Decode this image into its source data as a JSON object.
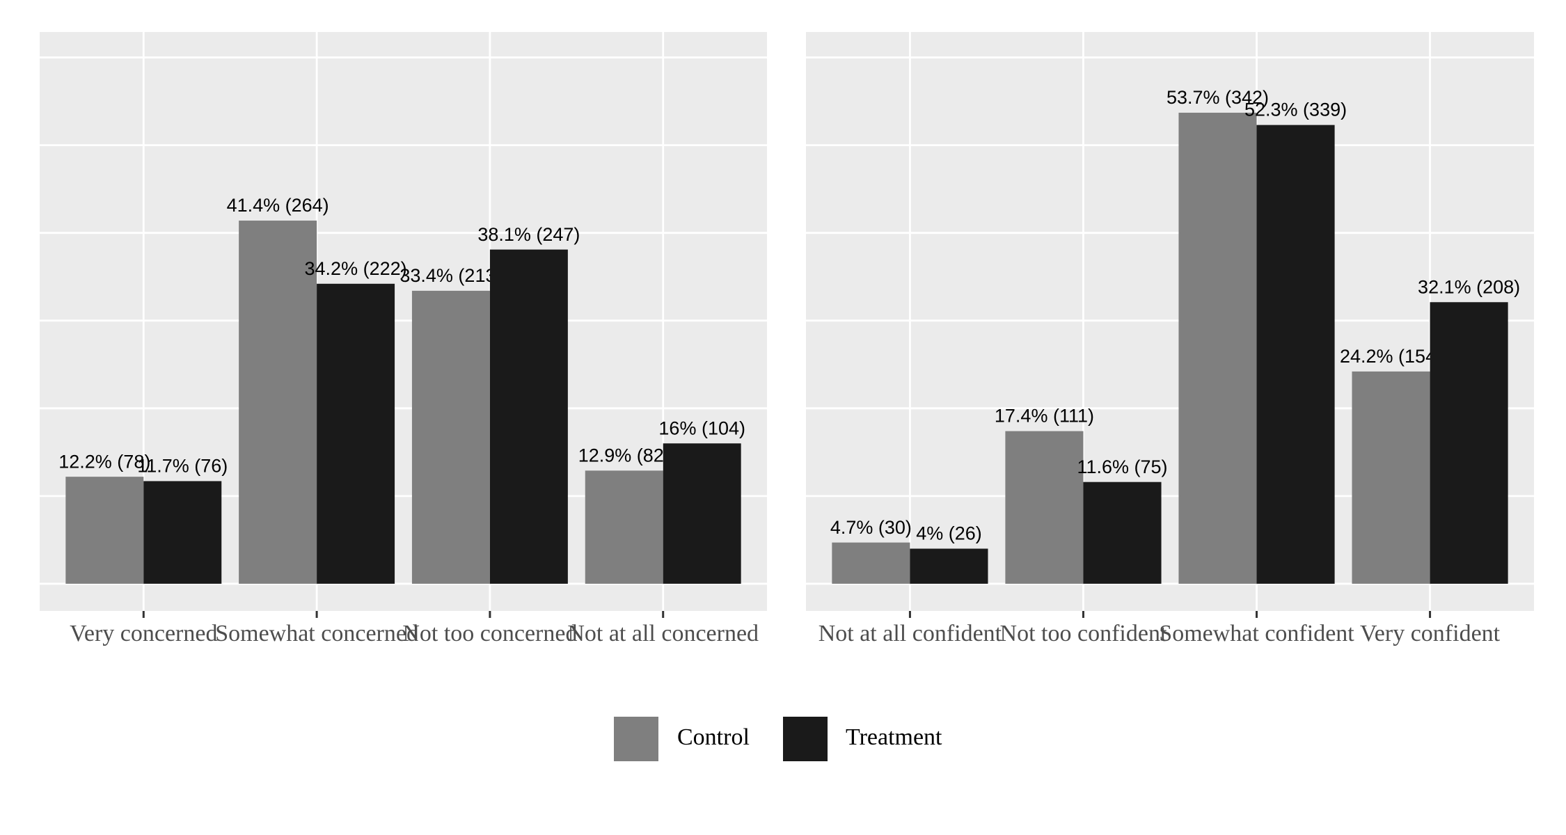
{
  "chart_data": [
    {
      "type": "bar",
      "categories": [
        "Very concerned",
        "Somewhat concerned",
        "Not too concerned",
        "Not at all concerned"
      ],
      "series": [
        {
          "color": "#7f7f7f",
          "values": [
            12.2,
            41.4,
            33.4,
            12.9
          ],
          "value_labels": [
            "12.2% (78)",
            "41.4% (264)",
            "33.4% (213)",
            "12.9% (82)"
          ]
        },
        {
          "color": "#1a1a1a",
          "values": [
            11.7,
            34.2,
            38.1,
            16
          ],
          "value_labels": [
            "11.7% (76)",
            "34.2% (222)",
            "38.1% (247)",
            "16% (104)"
          ]
        }
      ],
      "ylim": [
        -3.1,
        62.9
      ],
      "yticks": [
        0,
        10,
        20,
        30,
        40,
        50,
        60
      ],
      "grid": true
    },
    {
      "type": "bar",
      "categories": [
        "Not at all confident",
        "Not too confident",
        "Somewhat confident",
        "Very confident"
      ],
      "series": [
        {
          "color": "#7f7f7f",
          "values": [
            4.7,
            17.4,
            53.7,
            24.2
          ],
          "value_labels": [
            "4.7% (30)",
            "17.4% (111)",
            "53.7% (342)",
            "24.2% (154)"
          ]
        },
        {
          "color": "#1a1a1a",
          "values": [
            4,
            11.6,
            52.3,
            32.1
          ],
          "value_labels": [
            "4% (26)",
            "11.6% (75)",
            "52.3% (339)",
            "32.1% (208)"
          ]
        }
      ],
      "ylim": [
        -3.1,
        62.9
      ],
      "yticks": [
        0,
        10,
        20,
        30,
        40,
        50,
        60
      ],
      "grid": true
    }
  ],
  "legend": [
    {
      "name": "Control",
      "color": "#7f7f7f"
    },
    {
      "name": "Treatment",
      "color": "#1a1a1a"
    }
  ]
}
